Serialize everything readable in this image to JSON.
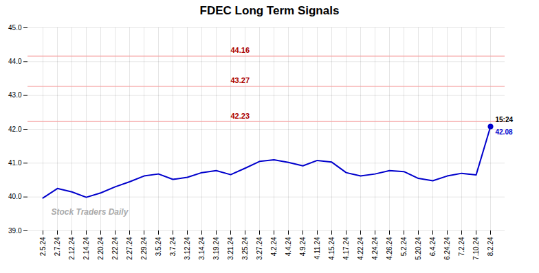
{
  "chart_data": {
    "type": "line",
    "title": "FDEC Long Term Signals",
    "categories": [
      "2.5.24",
      "2.7.24",
      "2.12.24",
      "2.14.24",
      "2.20.24",
      "2.22.24",
      "2.27.24",
      "2.29.24",
      "3.5.24",
      "3.7.24",
      "3.12.24",
      "3.14.24",
      "3.19.24",
      "3.21.24",
      "3.25.24",
      "3.27.24",
      "4.2.24",
      "4.4.24",
      "4.9.24",
      "4.11.24",
      "4.15.24",
      "4.17.24",
      "4.22.24",
      "4.24.24",
      "4.26.24",
      "5.2.24",
      "5.20.24",
      "6.4.24",
      "6.24.24",
      "7.2.24",
      "7.10.24",
      "8.2.24"
    ],
    "values": [
      39.97,
      40.25,
      40.15,
      39.99,
      40.12,
      40.3,
      40.45,
      40.62,
      40.68,
      40.52,
      40.58,
      40.72,
      40.78,
      40.66,
      40.85,
      41.05,
      41.1,
      41.02,
      40.92,
      41.08,
      41.03,
      40.72,
      40.62,
      40.68,
      40.78,
      40.75,
      40.55,
      40.48,
      40.62,
      40.7,
      40.65,
      42.08
    ],
    "color": "#0000cc",
    "ylim": [
      39,
      45
    ],
    "yticks": [
      39,
      40,
      41,
      42,
      43,
      44,
      45
    ],
    "grid": true,
    "reference_lines": [
      {
        "y": 44.16,
        "label": "44.16"
      },
      {
        "y": 43.27,
        "label": "43.27"
      },
      {
        "y": 42.23,
        "label": "42.23"
      }
    ],
    "reference_line_color": "#f5a0a0",
    "reference_label_color": "#aa0000",
    "endpoint": {
      "time_label": "15:24",
      "value_label": "42.08",
      "color": "#0000cc"
    },
    "watermark": {
      "text": "Stock Traders Daily",
      "color": "#aaaaaa"
    }
  }
}
